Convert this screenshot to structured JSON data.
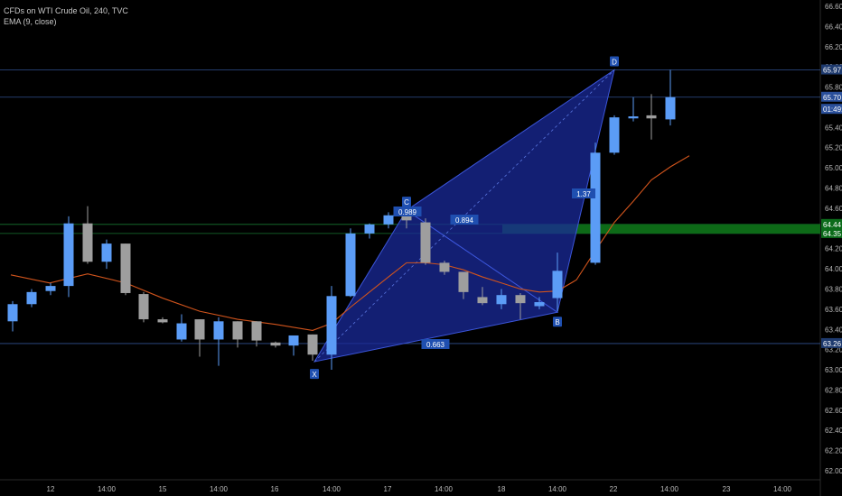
{
  "header": {
    "title": "CFDs on WTI Crude Oil, 240, TVC",
    "indicator": "EMA (9, close)"
  },
  "chart_data": {
    "type": "candlestick",
    "y_ticks": [
      "66.60",
      "66.40",
      "66.20",
      "66.00",
      "65.80",
      "65.60",
      "65.40",
      "65.20",
      "65.00",
      "64.80",
      "64.60",
      "64.40",
      "64.20",
      "64.00",
      "63.80",
      "63.60",
      "63.40",
      "63.20",
      "63.00",
      "62.80",
      "62.60",
      "62.40",
      "62.20",
      "62.00"
    ],
    "y_tick_values": [
      66.6,
      66.4,
      66.2,
      66.0,
      65.8,
      65.6,
      65.4,
      65.2,
      65.0,
      64.8,
      64.6,
      64.4,
      64.2,
      64.0,
      63.8,
      63.6,
      63.4,
      63.2,
      63.0,
      62.8,
      62.6,
      62.4,
      62.2,
      62.0
    ],
    "ylim": [
      61.9,
      66.7
    ],
    "x_ticks": [
      "12",
      "14:00",
      "15",
      "14:00",
      "16",
      "14:00",
      "17",
      "14:00",
      "18",
      "14:00",
      "22",
      "14:00",
      "23",
      "14:00"
    ],
    "candles": [
      {
        "o": 63.48,
        "h": 63.68,
        "l": 63.38,
        "c": 63.65
      },
      {
        "o": 63.65,
        "h": 63.8,
        "l": 63.62,
        "c": 63.77
      },
      {
        "o": 63.78,
        "h": 63.86,
        "l": 63.74,
        "c": 63.83
      },
      {
        "o": 63.83,
        "h": 64.52,
        "l": 63.72,
        "c": 64.45
      },
      {
        "o": 64.45,
        "h": 64.62,
        "l": 64.05,
        "c": 64.07
      },
      {
        "o": 64.07,
        "h": 64.29,
        "l": 64.0,
        "c": 64.25
      },
      {
        "o": 64.25,
        "h": 64.25,
        "l": 63.74,
        "c": 63.76
      },
      {
        "o": 63.75,
        "h": 63.77,
        "l": 63.47,
        "c": 63.5
      },
      {
        "o": 63.5,
        "h": 63.52,
        "l": 63.46,
        "c": 63.47
      },
      {
        "o": 63.3,
        "h": 63.55,
        "l": 63.28,
        "c": 63.46
      },
      {
        "o": 63.5,
        "h": 63.5,
        "l": 63.13,
        "c": 63.3
      },
      {
        "o": 63.3,
        "h": 63.52,
        "l": 63.04,
        "c": 63.48
      },
      {
        "o": 63.48,
        "h": 63.48,
        "l": 63.22,
        "c": 63.3
      },
      {
        "o": 63.48,
        "h": 63.48,
        "l": 63.23,
        "c": 63.29
      },
      {
        "o": 63.27,
        "h": 63.28,
        "l": 63.22,
        "c": 63.24
      },
      {
        "o": 63.24,
        "h": 63.34,
        "l": 63.14,
        "c": 63.34
      },
      {
        "o": 63.35,
        "h": 63.35,
        "l": 63.09,
        "c": 63.15
      },
      {
        "o": 63.15,
        "h": 63.83,
        "l": 63.0,
        "c": 63.73
      },
      {
        "o": 63.73,
        "h": 64.4,
        "l": 63.72,
        "c": 64.35
      },
      {
        "o": 64.35,
        "h": 64.45,
        "l": 64.3,
        "c": 64.44
      },
      {
        "o": 64.44,
        "h": 64.56,
        "l": 64.4,
        "c": 64.53
      },
      {
        "o": 64.54,
        "h": 64.67,
        "l": 64.4,
        "c": 64.48
      },
      {
        "o": 64.46,
        "h": 64.5,
        "l": 64.04,
        "c": 64.06
      },
      {
        "o": 64.06,
        "h": 64.08,
        "l": 63.94,
        "c": 63.97
      },
      {
        "o": 63.97,
        "h": 63.97,
        "l": 63.7,
        "c": 63.77
      },
      {
        "o": 63.72,
        "h": 63.82,
        "l": 63.64,
        "c": 63.66
      },
      {
        "o": 63.65,
        "h": 63.8,
        "l": 63.6,
        "c": 63.74
      },
      {
        "o": 63.74,
        "h": 63.76,
        "l": 63.5,
        "c": 63.66
      },
      {
        "o": 63.63,
        "h": 63.72,
        "l": 63.6,
        "c": 63.67
      },
      {
        "o": 63.71,
        "h": 64.16,
        "l": 63.58,
        "c": 63.98
      },
      {
        "o": 64.06,
        "h": 65.25,
        "l": 64.04,
        "c": 65.15
      },
      {
        "o": 65.15,
        "h": 65.52,
        "l": 65.13,
        "c": 65.5
      },
      {
        "o": 65.49,
        "h": 65.7,
        "l": 65.46,
        "c": 65.51
      },
      {
        "o": 65.52,
        "h": 65.73,
        "l": 65.28,
        "c": 65.49
      },
      {
        "o": 65.48,
        "h": 65.97,
        "l": 65.42,
        "c": 65.7
      }
    ],
    "candle_x": [
      14,
      35,
      56,
      76,
      97,
      118,
      139,
      159,
      180,
      201,
      221,
      242,
      263,
      284,
      305,
      325,
      346,
      367,
      388,
      409,
      430,
      450,
      471,
      492,
      513,
      534,
      555,
      576,
      597,
      617,
      659,
      680,
      701,
      721,
      742
    ],
    "ema": [
      [
        12,
        63.94
      ],
      [
        55,
        63.86
      ],
      [
        97,
        63.95
      ],
      [
        139,
        63.86
      ],
      [
        180,
        63.71
      ],
      [
        221,
        63.58
      ],
      [
        263,
        63.5
      ],
      [
        305,
        63.45
      ],
      [
        346,
        63.39
      ],
      [
        367,
        63.46
      ],
      [
        388,
        63.62
      ],
      [
        409,
        63.77
      ],
      [
        430,
        63.92
      ],
      [
        450,
        64.06
      ],
      [
        471,
        64.06
      ],
      [
        492,
        64.04
      ],
      [
        513,
        63.99
      ],
      [
        534,
        63.92
      ],
      [
        555,
        63.86
      ],
      [
        576,
        63.8
      ],
      [
        597,
        63.77
      ],
      [
        617,
        63.78
      ],
      [
        638,
        63.89
      ],
      [
        659,
        64.18
      ],
      [
        680,
        64.46
      ],
      [
        701,
        64.67
      ],
      [
        721,
        64.88
      ],
      [
        742,
        65.01
      ],
      [
        763,
        65.12
      ]
    ],
    "pattern": {
      "X": {
        "x": 348,
        "y": 63.08
      },
      "A": {
        "x": 430,
        "y": 64.58
      },
      "B": {
        "x": 617,
        "y": 63.57
      },
      "C": {
        "x": 450,
        "y": 64.58
      },
      "D": {
        "x": 680,
        "y": 65.97
      },
      "labels": [
        "X",
        "C",
        "B",
        "D"
      ],
      "ratios": [
        "0.989",
        "0.894",
        "0.663",
        "1.37"
      ]
    },
    "h_lines": [
      65.97,
      65.7,
      64.44,
      64.35,
      63.26
    ],
    "price_tags": [
      {
        "text": "65.97",
        "y": 65.97,
        "color": "#1e3a6e"
      },
      {
        "text": "65.70",
        "y": 65.7,
        "color": "#2a4f9a"
      },
      {
        "text": "01:49:21",
        "y": 65.58,
        "color": "#2a4f9a"
      },
      {
        "text": "64.44",
        "y": 64.44,
        "color": "#0b6b1a"
      },
      {
        "text": "64.35",
        "y": 64.35,
        "color": "#0b6b1a"
      },
      {
        "text": "63.26",
        "y": 63.26,
        "color": "#1e3a6e"
      }
    ],
    "zone": {
      "x_start": 556,
      "y_top": 64.44,
      "y_bottom": 64.35,
      "color": "#0d6a17"
    }
  }
}
